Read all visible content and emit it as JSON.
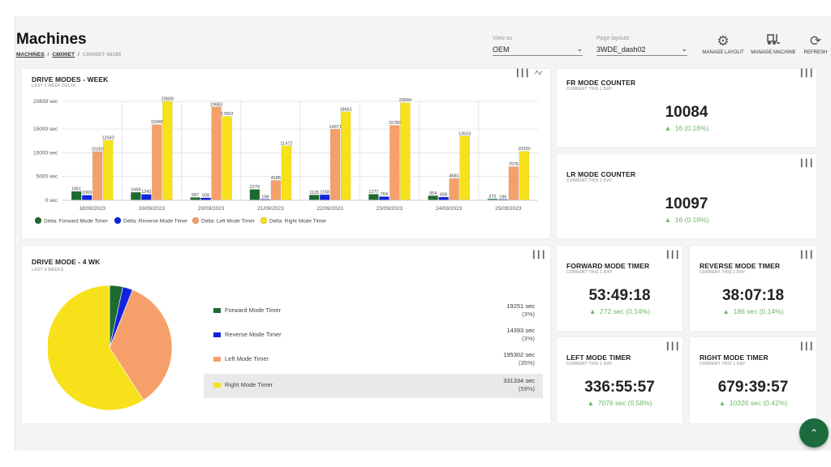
{
  "header": {
    "title": "Machines",
    "breadcrumb": [
      "MACHINES",
      "C8000ET",
      "C8000ET 48195"
    ],
    "view_as": {
      "label": "View as",
      "value": "OEM"
    },
    "page_layouts": {
      "label": "Page layouts",
      "value": "3WDE_dash02"
    },
    "tools": [
      {
        "label": "MANAGE LAYOUT",
        "icon": "gears-icon"
      },
      {
        "label": "MANAGE MACHINE",
        "icon": "forklift-icon"
      },
      {
        "label": "REFRESH",
        "icon": "refresh-icon"
      }
    ]
  },
  "colors": {
    "forward": "#1e6b32",
    "reverse": "#1024e0",
    "left": "#f5a06a",
    "right": "#f7e11a",
    "delta": "#6bb86b"
  },
  "drive_week": {
    "title": "DRIVE MODES - WEEK",
    "subtitle": "LAST 1 WEEK DELTA",
    "legend": [
      "Delta: Forward Mode Timer",
      "Delta: Reverse Mode Timer",
      "Delta: Left Mode Timer",
      "Delta: Right Mode Timer"
    ]
  },
  "chart_data": [
    {
      "type": "bar",
      "categories": [
        "18/09/2023",
        "19/09/2023",
        "20/09/2023",
        "21/09/2023",
        "22/09/2023",
        "23/09/2023",
        "24/09/2023",
        "25/09/2023"
      ],
      "series": [
        {
          "name": "Delta: Forward Mode Timer",
          "values": [
            1861,
            1669,
            587,
            2279,
            1115,
            1277,
            954,
            272
          ]
        },
        {
          "name": "Delta: Reverse Mode Timer",
          "values": [
            1069,
            1242,
            508,
            198,
            1158,
            764,
            658,
            186
          ]
        },
        {
          "name": "Delta: Left Mode Timer",
          "values": [
            10269,
            15948,
            19683,
            4185,
            14971,
            15789,
            4581,
            7076
          ]
        },
        {
          "name": "Delta: Right Mode Timer",
          "values": [
            12642,
            20839,
            17663,
            11472,
            18661,
            20544,
            13533,
            10320
          ]
        }
      ],
      "yticks": [
        "20839 sec",
        "15000 sec",
        "10000 sec",
        "5000 sec",
        "0 sec"
      ],
      "ylim": [
        0,
        20839
      ],
      "grid": true,
      "legend_position": "bottom"
    },
    {
      "type": "pie",
      "labels": [
        "Forward Mode Timer",
        "Reverse Mode Timer",
        "Left Mode Timer",
        "Right Mode Timer"
      ],
      "values": [
        19251,
        14393,
        195302,
        331334
      ],
      "legend_position": "right"
    }
  ],
  "drive_4wk": {
    "title": "DRIVE MODE - 4 WK",
    "subtitle": "LAST 4 WEEKS",
    "rows": [
      {
        "name": "Forward Mode Timer",
        "value": "19251 sec",
        "pct": "(3%)"
      },
      {
        "name": "Reverse Mode Timer",
        "value": "14393 sec",
        "pct": "(3%)"
      },
      {
        "name": "Left Mode Timer",
        "value": "195302 sec",
        "pct": "(35%)"
      },
      {
        "name": "Right Mode Timer",
        "value": "331334 sec",
        "pct": "(59%)"
      }
    ]
  },
  "counters": {
    "fr": {
      "title": "FR MODE COUNTER",
      "sub": "CURRENT THIS 1 DAY",
      "value": "10084",
      "delta": "16 (0.16%)"
    },
    "lr": {
      "title": "LR MODE COUNTER",
      "sub": "CURRENT THIS 1 DAY",
      "value": "10097",
      "delta": "16 (0.16%)"
    },
    "fwd": {
      "title": "FORWARD MODE TIMER",
      "sub": "CURRENT THIS 1 DAY",
      "value": "53:49:18",
      "delta": "272 sec (0.14%)"
    },
    "rev": {
      "title": "REVERSE MODE TIMER",
      "sub": "CURRENT THIS 1 DAY",
      "value": "38:07:18",
      "delta": "186 sec (0.14%)"
    },
    "left": {
      "title": "LEFT MODE TIMER",
      "sub": "CURRENT THIS 1 DAY",
      "value": "336:55:57",
      "delta": "7076 sec (0.58%)"
    },
    "right": {
      "title": "RIGHT MODE TIMER",
      "sub": "CURRENT THIS 1 DAY",
      "value": "679:39:57",
      "delta": "10320 sec (0.42%)"
    }
  }
}
